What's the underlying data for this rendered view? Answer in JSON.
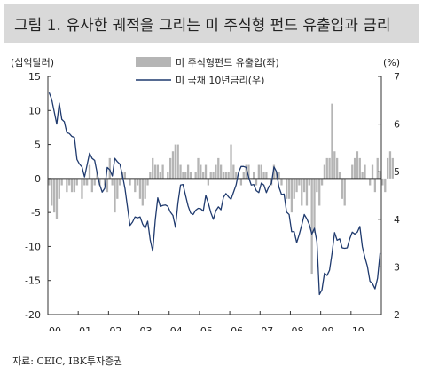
{
  "header": {
    "title": "그림 1. 유사한 궤적을 그리는 미 주식형 펀드 유출입과 금리"
  },
  "source": "자료: CEIC, IBK투자증권",
  "chart_data": {
    "type": "bar+line",
    "left_axis": {
      "unit": "(십억달러)",
      "ylim": [
        -20,
        15
      ],
      "ticks": [
        15,
        10,
        5,
        0,
        -5,
        -10,
        -15,
        -20
      ]
    },
    "right_axis": {
      "unit": "(%)",
      "ylim": [
        2,
        7
      ],
      "ticks": [
        7,
        6,
        5,
        4,
        3,
        2
      ]
    },
    "x_axis": {
      "range": [
        2000,
        2011
      ],
      "ticks": [
        "00",
        "01",
        "02",
        "03",
        "04",
        "05",
        "06",
        "07",
        "08",
        "09",
        "10"
      ]
    },
    "legend_position": "top-center",
    "series": [
      {
        "name": "미 주식형펀드 유출입(좌)",
        "type": "bar",
        "axis": "left",
        "color": "#b5b5b5",
        "values": [
          -1,
          -4,
          -5,
          -6,
          -3,
          -1,
          0,
          -2,
          -1,
          -2,
          -2,
          -1,
          0,
          -3,
          -1,
          -1,
          2,
          -2,
          -1,
          1,
          -1,
          0,
          -1,
          -2,
          3,
          -1,
          -5,
          -3,
          -1,
          1,
          1,
          0,
          -1,
          0,
          -2,
          -1,
          -3,
          -4,
          -3,
          -1,
          1,
          3,
          2,
          2,
          1,
          2,
          0,
          1,
          3,
          4,
          5,
          5,
          2,
          1,
          1,
          2,
          1,
          0,
          1,
          3,
          2,
          1,
          2,
          -1,
          1,
          1,
          2,
          3,
          2,
          1,
          1,
          1,
          5,
          2,
          1,
          0,
          -1,
          1,
          2,
          2,
          0,
          1,
          -1,
          2,
          2,
          1,
          1,
          0,
          -1,
          2,
          1,
          1,
          -1,
          0,
          -3,
          -3,
          -5,
          -3,
          -2,
          -1,
          -4,
          -2,
          -4,
          -1,
          -14,
          -8,
          -2,
          -4,
          -1,
          2,
          3,
          3,
          11,
          4,
          3,
          1,
          -3,
          -4,
          0,
          0,
          2,
          3,
          4,
          3,
          1,
          2,
          0,
          -1,
          2,
          -2,
          3,
          1,
          -1,
          -2,
          3,
          4,
          3
        ]
      },
      {
        "name": "미 국채 10년금리(우)",
        "type": "line",
        "axis": "right",
        "color": "#1f3a6e",
        "values": [
          6.66,
          6.52,
          6.26,
          6.0,
          6.44,
          6.1,
          6.05,
          5.82,
          5.8,
          5.74,
          5.72,
          5.26,
          5.16,
          5.1,
          4.89,
          5.14,
          5.39,
          5.28,
          5.24,
          4.97,
          4.73,
          4.57,
          4.65,
          5.09,
          5.04,
          4.91,
          5.28,
          5.21,
          5.16,
          4.93,
          4.65,
          4.26,
          3.87,
          3.94,
          4.05,
          4.03,
          4.05,
          3.9,
          3.81,
          3.96,
          3.57,
          3.33,
          3.98,
          4.45,
          4.27,
          4.29,
          4.3,
          4.27,
          4.15,
          4.08,
          3.83,
          4.35,
          4.72,
          4.73,
          4.5,
          4.28,
          4.13,
          4.1,
          4.19,
          4.23,
          4.22,
          4.17,
          4.5,
          4.34,
          4.14,
          4.0,
          4.18,
          4.26,
          4.2,
          4.46,
          4.54,
          4.47,
          4.42,
          4.57,
          4.72,
          4.99,
          5.11,
          5.11,
          5.09,
          4.88,
          4.72,
          4.73,
          4.6,
          4.56,
          4.76,
          4.72,
          4.56,
          4.69,
          4.75,
          5.1,
          5.0,
          4.67,
          4.52,
          4.53,
          4.15,
          4.1,
          3.74,
          3.74,
          3.51,
          3.68,
          3.88,
          4.1,
          4.01,
          3.89,
          3.69,
          3.81,
          3.53,
          2.42,
          2.52,
          2.87,
          2.82,
          2.93,
          3.29,
          3.72,
          3.56,
          3.59,
          3.4,
          3.39,
          3.4,
          3.59,
          3.73,
          3.69,
          3.73,
          3.85,
          3.42,
          3.2,
          3.01,
          2.7,
          2.65,
          2.54,
          2.76,
          3.29
        ]
      }
    ]
  }
}
